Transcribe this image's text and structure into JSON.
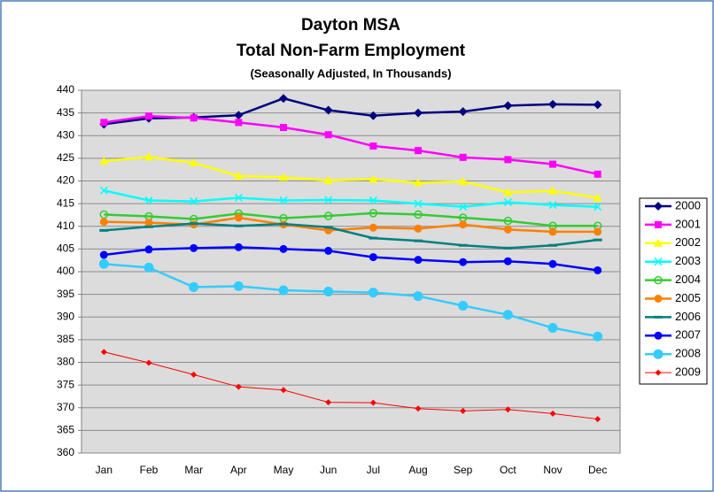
{
  "chart_data": {
    "type": "line",
    "title": [
      "Dayton MSA",
      "Total Non-Farm Employment"
    ],
    "subtitle": "(Seasonally Adjusted, In Thousands)",
    "categories": [
      "Jan",
      "Feb",
      "Mar",
      "Apr",
      "May",
      "Jun",
      "Jul",
      "Aug",
      "Sep",
      "Oct",
      "Nov",
      "Dec"
    ],
    "ylim": [
      360,
      440
    ],
    "yticks": [
      360,
      365,
      370,
      375,
      380,
      385,
      390,
      395,
      400,
      405,
      410,
      415,
      420,
      425,
      430,
      435,
      440
    ],
    "grid": true,
    "legend": "right",
    "series": [
      {
        "name": "2000",
        "color": "#000080",
        "marker": "diamond",
        "values": [
          432.5,
          433.8,
          434.0,
          434.5,
          438.2,
          435.6,
          434.4,
          435.0,
          435.3,
          436.6,
          436.9,
          436.8
        ]
      },
      {
        "name": "2001",
        "color": "#FF00FF",
        "marker": "square",
        "values": [
          432.9,
          434.3,
          433.9,
          432.9,
          431.8,
          430.2,
          427.7,
          426.7,
          425.2,
          424.7,
          423.7,
          421.5
        ]
      },
      {
        "name": "2002",
        "color": "#FFFF00",
        "marker": "triangle",
        "values": [
          424.4,
          425.3,
          424.0,
          421.1,
          420.8,
          420.1,
          420.4,
          419.6,
          419.9,
          417.5,
          417.8,
          416.3
        ]
      },
      {
        "name": "2003",
        "color": "#00FFFF",
        "marker": "x",
        "values": [
          417.9,
          415.7,
          415.5,
          416.3,
          415.7,
          415.8,
          415.7,
          415.0,
          414.3,
          415.3,
          414.7,
          414.3
        ]
      },
      {
        "name": "2004",
        "color": "#33CC33",
        "marker": "open-circle",
        "values": [
          412.6,
          412.2,
          411.6,
          412.8,
          411.8,
          412.3,
          412.9,
          412.6,
          411.9,
          411.2,
          410.1,
          410.1
        ]
      },
      {
        "name": "2005",
        "color": "#FF8000",
        "marker": "circle",
        "values": [
          411.0,
          410.8,
          410.4,
          411.9,
          410.4,
          409.1,
          409.7,
          409.5,
          410.4,
          409.3,
          408.8,
          408.8
        ]
      },
      {
        "name": "2006",
        "color": "#008080",
        "marker": "dash",
        "values": [
          409.1,
          409.9,
          410.6,
          410.1,
          410.5,
          409.8,
          407.4,
          406.8,
          405.8,
          405.2,
          405.8,
          407.0
        ]
      },
      {
        "name": "2007",
        "color": "#0000FF",
        "marker": "circle",
        "values": [
          403.7,
          404.9,
          405.2,
          405.4,
          405.0,
          404.6,
          403.2,
          402.6,
          402.1,
          402.3,
          401.7,
          400.3
        ]
      },
      {
        "name": "2008",
        "color": "#33CCFF",
        "marker": "big-circle",
        "values": [
          401.7,
          400.9,
          396.6,
          396.8,
          395.9,
          395.6,
          395.4,
          394.6,
          392.5,
          390.5,
          387.6,
          385.7
        ]
      },
      {
        "name": "2009",
        "color": "#FF0000",
        "marker": "small-diamond",
        "values": [
          382.3,
          379.9,
          377.3,
          374.6,
          373.9,
          371.2,
          371.1,
          369.8,
          369.3,
          369.6,
          368.7,
          367.5
        ]
      }
    ]
  }
}
